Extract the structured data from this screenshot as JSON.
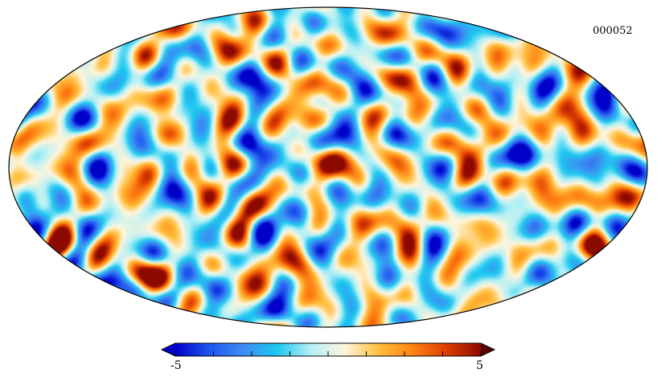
{
  "map": {
    "projection": "mollweide",
    "label": "000052",
    "colormap": [
      "#0000c8",
      "#1f55f0",
      "#3c8cf2",
      "#1ec8f0",
      "#b4f0f5",
      "#fff5dc",
      "#ffbe3c",
      "#ff8214",
      "#dc3c00",
      "#8c0a00"
    ],
    "outline_color": "#000000"
  },
  "colorbar": {
    "min_label": "-5",
    "max_label": "5",
    "min": -5,
    "max": 5,
    "ticks": [
      -5,
      -3.75,
      -2.5,
      -1.25,
      0,
      1.25,
      2.5,
      3.75,
      5
    ],
    "under_color": "#0000c8",
    "over_color": "#5a0000"
  }
}
